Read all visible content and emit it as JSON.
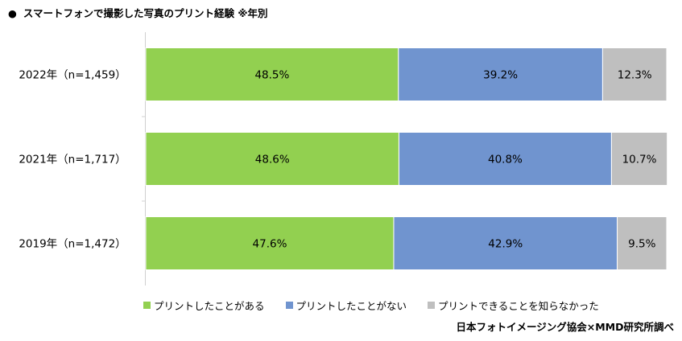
{
  "title": {
    "bullet": "●",
    "text": "スマートフォンで撮影した写真のプリント経験 ※年別"
  },
  "source": "日本フォトイメージング協会×MMD研究所調べ",
  "colors": {
    "printed": "#92d050",
    "not_printed": "#7094cf",
    "unaware": "#bfbfbf",
    "axis": "#d0d0d0"
  },
  "chart_data": {
    "type": "bar",
    "orientation": "horizontal",
    "stacked": true,
    "normalized": true,
    "categories": [
      "2022年（n=1,459）",
      "2021年（n=1,717）",
      "2019年（n=1,472）"
    ],
    "series": [
      {
        "name": "プリントしたことがある",
        "values": [
          48.5,
          48.6,
          47.6
        ],
        "labels": [
          "48.5%",
          "48.6%",
          "47.6%"
        ]
      },
      {
        "name": "プリントしたことがない",
        "values": [
          39.2,
          40.8,
          42.9
        ],
        "labels": [
          "39.2%",
          "40.8%",
          "42.9%"
        ]
      },
      {
        "name": "プリントできることを知らなかった",
        "values": [
          12.3,
          10.7,
          9.5
        ],
        "labels": [
          "12.3%",
          "10.7%",
          "9.5%"
        ]
      }
    ],
    "xlim": [
      0,
      100
    ],
    "legend_position": "bottom-left",
    "grid": false
  }
}
